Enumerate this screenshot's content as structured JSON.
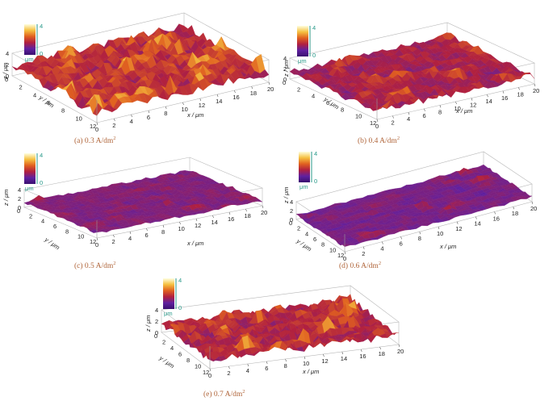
{
  "colorbar": {
    "max": "4",
    "min": "0",
    "unit": "μm",
    "gradient": [
      "#ffffe0",
      "#f5c040",
      "#e06020",
      "#b02040",
      "#6020a0",
      "#3a1070"
    ],
    "accent": "#2a9a8a"
  },
  "axis_labels": {
    "x": "x / μm",
    "y": "y / μm",
    "z": "z / μm"
  },
  "x_ticks": [
    "0",
    "2",
    "4",
    "6",
    "8",
    "10",
    "12",
    "14",
    "16",
    "18",
    "20"
  ],
  "y_ticks": [
    "0",
    "2",
    "4",
    "6",
    "8",
    "10",
    "12"
  ],
  "z_ticks": [
    "0",
    "2",
    "4"
  ],
  "panels": [
    {
      "id": "a",
      "caption_prefix": "(a) 0.3 A/dm",
      "caption_exp": "2",
      "roughness": "high",
      "mean_level": 0.55,
      "variance": 0.45
    },
    {
      "id": "b",
      "caption_prefix": "(b) 0.4 A/dm",
      "caption_exp": "2",
      "roughness": "medium",
      "mean_level": 0.45,
      "variance": 0.3
    },
    {
      "id": "c",
      "caption_prefix": "(c) 0.5 A/dm",
      "caption_exp": "2",
      "roughness": "low",
      "mean_level": 0.35,
      "variance": 0.15
    },
    {
      "id": "d",
      "caption_prefix": "(d) 0.6 A/dm",
      "caption_exp": "2",
      "roughness": "low",
      "mean_level": 0.32,
      "variance": 0.15
    },
    {
      "id": "e",
      "caption_prefix": "(e) 0.7 A/dm",
      "caption_exp": "2",
      "roughness": "high",
      "mean_level": 0.5,
      "variance": 0.4
    }
  ]
}
